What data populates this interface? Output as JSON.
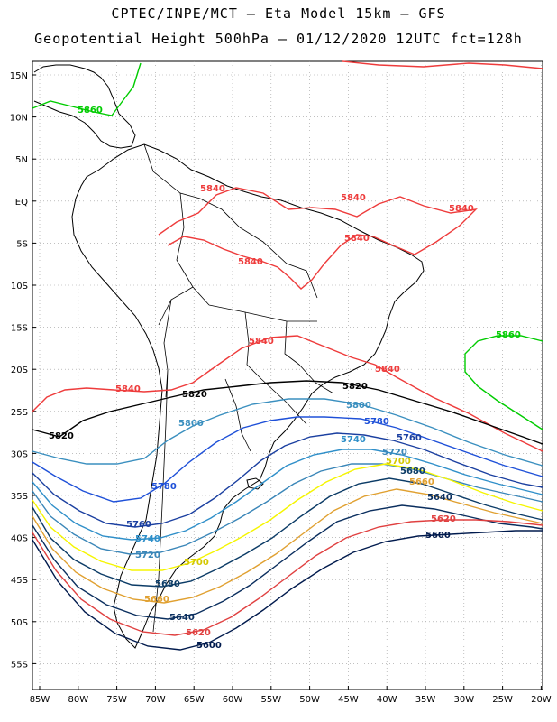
{
  "header": {
    "line1": "CPTEC/INPE/MCT –  Eta Model 15km – GFS",
    "line2": "Geopotential Height 500hPa – 01/12/2020 12UTC fct=128h"
  },
  "axes": {
    "lat_labels": [
      "15N",
      "10N",
      "5N",
      "EQ",
      "5S",
      "10S",
      "15S",
      "20S",
      "25S",
      "30S",
      "35S",
      "40S",
      "45S",
      "50S",
      "55S"
    ],
    "lon_labels": [
      "85W",
      "80W",
      "75W",
      "70W",
      "65W",
      "60W",
      "55W",
      "50W",
      "45W",
      "40W",
      "35W",
      "30W",
      "25W",
      "20W"
    ]
  },
  "contours": [
    {
      "value": "5860",
      "color": "#00cc00"
    },
    {
      "value": "5840",
      "color": "#ee3b3b"
    },
    {
      "value": "5820",
      "color": "#000000"
    },
    {
      "value": "5800",
      "color": "#3a8fbf"
    },
    {
      "value": "5780",
      "color": "#1e50d8"
    },
    {
      "value": "5760",
      "color": "#1a3fa0"
    },
    {
      "value": "5740",
      "color": "#2f8fc9"
    },
    {
      "value": "5720",
      "color": "#3a86b8"
    },
    {
      "value": "5700",
      "color": "#f5f500"
    },
    {
      "value": "5680",
      "color": "#0b3b66"
    },
    {
      "value": "5660",
      "color": "#e0a030"
    },
    {
      "value": "5640",
      "color": "#0a2e5e"
    },
    {
      "value": "5620",
      "color": "#e04040"
    },
    {
      "value": "5600",
      "color": "#001a4d"
    }
  ],
  "labels": {
    "l5860_a": "5860",
    "l5860_b": "5860",
    "l5840_a": "5840",
    "l5840_b": "5840",
    "l5840_c": "5840",
    "l5840_d": "5840",
    "l5840_e": "5840",
    "l5840_f": "5840",
    "l5840_g": "5840",
    "l5840_h": "5840",
    "l5820_a": "5820",
    "l5820_b": "5820",
    "l5820_c": "5820",
    "l5800_a": "5800",
    "l5800_b": "5800",
    "l5780_a": "5780",
    "l5780_b": "5780",
    "l5760_a": "5760",
    "l5760_b": "5760",
    "l5740_a": "5740",
    "l5740_b": "5740",
    "l5720_a": "5720",
    "l5720_b": "5720",
    "l5700_a": "5700",
    "l5700_b": "5700",
    "l5680_a": "5680",
    "l5680_b": "5680",
    "l5660_a": "5660",
    "l5660_b": "5660",
    "l5640_a": "5640",
    "l5640_b": "5640",
    "l5620_a": "5620",
    "l5620_b": "5620",
    "l5600_a": "5600",
    "l5600_b": "5600"
  }
}
